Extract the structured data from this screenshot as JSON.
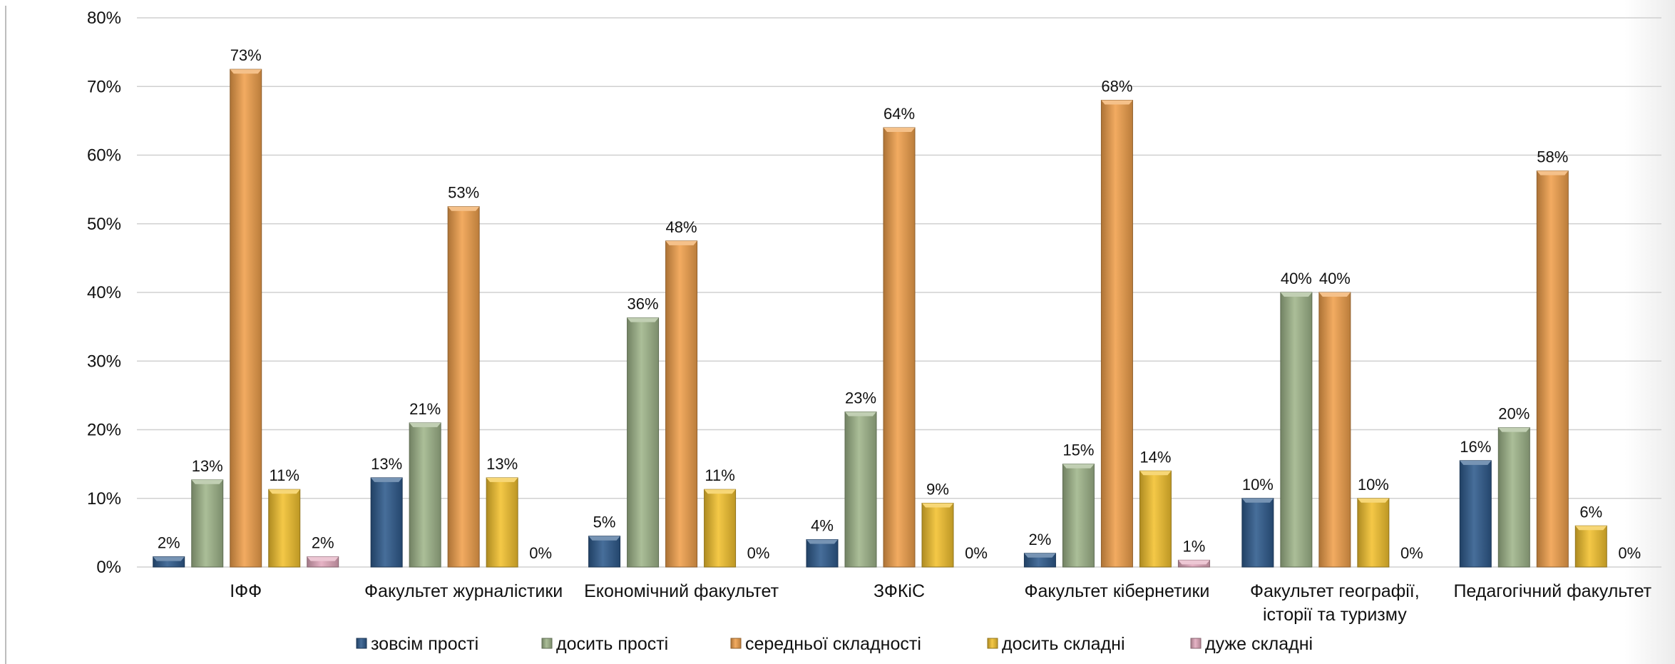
{
  "chart_data": {
    "type": "bar",
    "y_axis": {
      "min": 0,
      "max": 80,
      "step": 10,
      "suffix": "%"
    },
    "grid": true,
    "legend_position": "bottom",
    "categories": [
      [
        "ІФФ"
      ],
      [
        "Факультет журналістики"
      ],
      [
        "Економічний факультет"
      ],
      [
        "ЗФКіС"
      ],
      [
        "Факультет кібернетики"
      ],
      [
        "Факультет географії,",
        "історії та туризму"
      ],
      [
        "Педагогічний факультет"
      ]
    ],
    "series": [
      {
        "name": "зовсім прості",
        "color": "#2e5a8c",
        "values": [
          1.5,
          13,
          4.5,
          4,
          2,
          10,
          15.5
        ],
        "labels": [
          "2%",
          "13%",
          "5%",
          "4%",
          "2%",
          "10%",
          "16%"
        ]
      },
      {
        "name": "досить прості",
        "color": "#9fb58a",
        "values": [
          12.7,
          21,
          36.3,
          22.6,
          15,
          40,
          20.3
        ],
        "labels": [
          "13%",
          "21%",
          "36%",
          "23%",
          "15%",
          "40%",
          "20%"
        ]
      },
      {
        "name": "середньої складності",
        "color": "#f0a04b",
        "values": [
          72.5,
          52.5,
          47.5,
          64,
          68,
          40,
          57.7
        ],
        "labels": [
          "73%",
          "53%",
          "48%",
          "64%",
          "68%",
          "40%",
          "58%"
        ]
      },
      {
        "name": "досить складні",
        "color": "#f2c12e",
        "values": [
          11.3,
          13,
          11.3,
          9.3,
          14,
          10,
          6
        ],
        "labels": [
          "11%",
          "13%",
          "11%",
          "9%",
          "14%",
          "10%",
          "6%"
        ]
      },
      {
        "name": "дуже складні",
        "color": "#e3a9bd",
        "values": [
          1.5,
          0,
          0,
          0,
          1,
          0,
          0
        ],
        "labels": [
          "2%",
          "0%",
          "0%",
          "0%",
          "1%",
          "0%",
          "0%"
        ]
      }
    ]
  }
}
